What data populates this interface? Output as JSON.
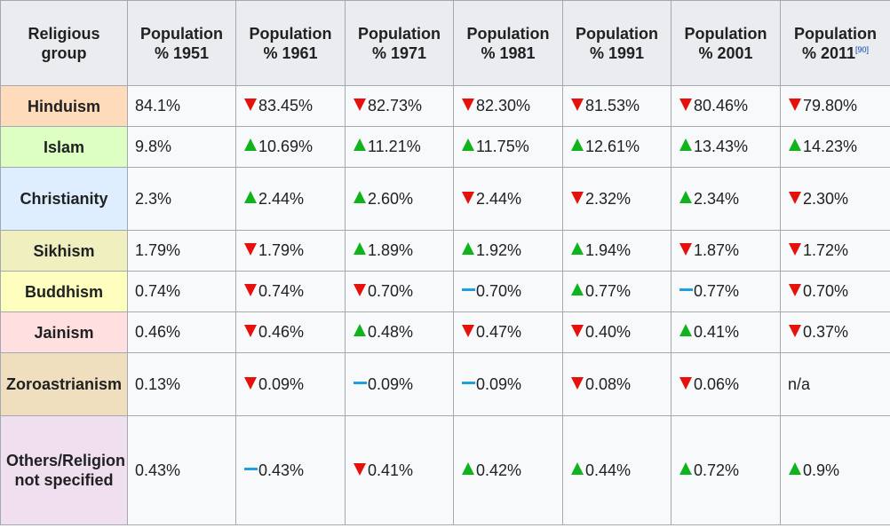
{
  "table": {
    "header": {
      "group_label": "Religious group",
      "years": [
        {
          "label": "Population % 1951",
          "ref": ""
        },
        {
          "label": "Population % 1961",
          "ref": ""
        },
        {
          "label": "Population % 1971",
          "ref": ""
        },
        {
          "label": "Population % 1981",
          "ref": ""
        },
        {
          "label": "Population % 1991",
          "ref": ""
        },
        {
          "label": "Population % 2001",
          "ref": ""
        },
        {
          "label": "Population % 2011",
          "ref": "[90]"
        }
      ]
    },
    "rows": [
      {
        "group": "Hinduism",
        "bg": "#fddbbb",
        "cells": [
          {
            "value": "84.1%",
            "change": "none"
          },
          {
            "value": "83.45%",
            "change": "down"
          },
          {
            "value": "82.73%",
            "change": "down"
          },
          {
            "value": "82.30%",
            "change": "down"
          },
          {
            "value": "81.53%",
            "change": "down"
          },
          {
            "value": "80.46%",
            "change": "down"
          },
          {
            "value": "79.80%",
            "change": "down"
          }
        ]
      },
      {
        "group": "Islam",
        "bg": "#ddffc4",
        "cells": [
          {
            "value": "9.8%",
            "change": "none"
          },
          {
            "value": "10.69%",
            "change": "up"
          },
          {
            "value": "11.21%",
            "change": "up"
          },
          {
            "value": "11.75%",
            "change": "up"
          },
          {
            "value": "12.61%",
            "change": "up"
          },
          {
            "value": "13.43%",
            "change": "up"
          },
          {
            "value": "14.23%",
            "change": "up"
          }
        ]
      },
      {
        "group": "Christianity",
        "bg": "#dfeefe",
        "cells": [
          {
            "value": "2.3%",
            "change": "none"
          },
          {
            "value": "2.44%",
            "change": "up"
          },
          {
            "value": "2.60%",
            "change": "up"
          },
          {
            "value": "2.44%",
            "change": "down"
          },
          {
            "value": "2.32%",
            "change": "down"
          },
          {
            "value": "2.34%",
            "change": "up"
          },
          {
            "value": "2.30%",
            "change": "down"
          }
        ]
      },
      {
        "group": "Sikhism",
        "bg": "#efefbf",
        "cells": [
          {
            "value": "1.79%",
            "change": "none"
          },
          {
            "value": "1.79%",
            "change": "down"
          },
          {
            "value": "1.89%",
            "change": "up"
          },
          {
            "value": "1.92%",
            "change": "up"
          },
          {
            "value": "1.94%",
            "change": "up"
          },
          {
            "value": "1.87%",
            "change": "down"
          },
          {
            "value": "1.72%",
            "change": "down"
          }
        ]
      },
      {
        "group": "Buddhism",
        "bg": "#feffbf",
        "cells": [
          {
            "value": "0.74%",
            "change": "none"
          },
          {
            "value": "0.74%",
            "change": "down"
          },
          {
            "value": "0.70%",
            "change": "down"
          },
          {
            "value": "0.70%",
            "change": "steady"
          },
          {
            "value": "0.77%",
            "change": "up"
          },
          {
            "value": "0.77%",
            "change": "steady"
          },
          {
            "value": "0.70%",
            "change": "down"
          }
        ]
      },
      {
        "group": "Jainism",
        "bg": "#ffdfdf",
        "cells": [
          {
            "value": "0.46%",
            "change": "none"
          },
          {
            "value": "0.46%",
            "change": "down"
          },
          {
            "value": "0.48%",
            "change": "up"
          },
          {
            "value": "0.47%",
            "change": "down"
          },
          {
            "value": "0.40%",
            "change": "down"
          },
          {
            "value": "0.41%",
            "change": "up"
          },
          {
            "value": "0.37%",
            "change": "down"
          }
        ]
      },
      {
        "group": "Zoroastrianism",
        "bg": "#f0dfbf",
        "cells": [
          {
            "value": "0.13%",
            "change": "none"
          },
          {
            "value": "0.09%",
            "change": "down"
          },
          {
            "value": "0.09%",
            "change": "steady"
          },
          {
            "value": "0.09%",
            "change": "steady"
          },
          {
            "value": "0.08%",
            "change": "down"
          },
          {
            "value": "0.06%",
            "change": "down"
          },
          {
            "value": "n/a",
            "change": "none"
          }
        ]
      },
      {
        "group": "Others/Religion not specified",
        "bg": "#efdfef",
        "cells": [
          {
            "value": "0.43%",
            "change": "none"
          },
          {
            "value": "0.43%",
            "change": "steady"
          },
          {
            "value": "0.41%",
            "change": "down"
          },
          {
            "value": "0.42%",
            "change": "up"
          },
          {
            "value": "0.44%",
            "change": "up"
          },
          {
            "value": "0.72%",
            "change": "up"
          },
          {
            "value": "0.9%",
            "change": "up"
          }
        ]
      }
    ],
    "change_icons": {
      "up": "increase-triangle-icon",
      "down": "decrease-triangle-icon",
      "steady": "steady-dash-icon"
    },
    "colors": {
      "up": "#0fb41d",
      "down": "#e5110d",
      "steady": "#1e9fe0",
      "header_bg": "#eaecf0",
      "cell_bg": "#f8f9fa",
      "border": "#a2a9b1"
    }
  }
}
